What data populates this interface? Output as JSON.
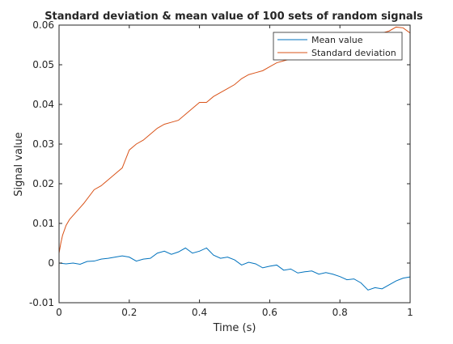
{
  "chart_data": {
    "type": "line",
    "title": "Standard deviation & mean value of 100 sets of random signals",
    "xlabel": "Time (s)",
    "ylabel": "Signal value",
    "xlim": [
      0,
      1
    ],
    "ylim": [
      -0.01,
      0.06
    ],
    "xticks": [
      0,
      0.2,
      0.4,
      0.6,
      0.8,
      1
    ],
    "xtick_labels": [
      "0",
      "0.2",
      "0.4",
      "0.6",
      "0.8",
      "1"
    ],
    "yticks": [
      -0.01,
      0,
      0.01,
      0.02,
      0.03,
      0.04,
      0.05,
      0.06
    ],
    "ytick_labels": [
      "-0.01",
      "0",
      "0.01",
      "0.02",
      "0.03",
      "0.04",
      "0.05",
      "0.06"
    ],
    "grid": false,
    "legend_position": "top-right",
    "series": [
      {
        "name": "Mean value",
        "color": "#0072BD",
        "x": [
          0,
          0.02,
          0.04,
          0.06,
          0.08,
          0.1,
          0.12,
          0.14,
          0.16,
          0.18,
          0.2,
          0.22,
          0.24,
          0.26,
          0.28,
          0.3,
          0.32,
          0.34,
          0.36,
          0.38,
          0.4,
          0.42,
          0.44,
          0.46,
          0.48,
          0.5,
          0.52,
          0.54,
          0.56,
          0.58,
          0.6,
          0.62,
          0.64,
          0.66,
          0.68,
          0.7,
          0.72,
          0.74,
          0.76,
          0.78,
          0.8,
          0.82,
          0.84,
          0.86,
          0.88,
          0.9,
          0.92,
          0.94,
          0.96,
          0.98,
          1.0
        ],
        "y": [
          0.0,
          -0.0002,
          0.0,
          -0.0003,
          0.0004,
          0.0005,
          0.001,
          0.0012,
          0.0015,
          0.0018,
          0.0015,
          0.0005,
          0.001,
          0.0012,
          0.0025,
          0.003,
          0.0022,
          0.0028,
          0.0038,
          0.0025,
          0.003,
          0.0038,
          0.002,
          0.0012,
          0.0015,
          0.0008,
          -0.0005,
          0.0002,
          -0.0002,
          -0.0012,
          -0.0008,
          -0.0005,
          -0.0018,
          -0.0015,
          -0.0025,
          -0.0022,
          -0.002,
          -0.0028,
          -0.0024,
          -0.0028,
          -0.0034,
          -0.0042,
          -0.004,
          -0.005,
          -0.0068,
          -0.0062,
          -0.0065,
          -0.0055,
          -0.0045,
          -0.0038,
          -0.0035
        ]
      },
      {
        "name": "Standard deviation",
        "color": "#D95319",
        "x": [
          0,
          0.005,
          0.01,
          0.02,
          0.03,
          0.05,
          0.07,
          0.1,
          0.12,
          0.14,
          0.16,
          0.18,
          0.2,
          0.22,
          0.24,
          0.26,
          0.28,
          0.3,
          0.32,
          0.34,
          0.36,
          0.38,
          0.4,
          0.42,
          0.44,
          0.46,
          0.48,
          0.5,
          0.52,
          0.54,
          0.56,
          0.58,
          0.6,
          0.62,
          0.64,
          0.66,
          0.68,
          0.7,
          0.72,
          0.74,
          0.76,
          0.78,
          0.8,
          0.82,
          0.84,
          0.86,
          0.88,
          0.9,
          0.92,
          0.94,
          0.96,
          0.98,
          1.0
        ],
        "y": [
          0.0025,
          0.005,
          0.007,
          0.0095,
          0.011,
          0.013,
          0.015,
          0.0185,
          0.0195,
          0.021,
          0.0225,
          0.024,
          0.0285,
          0.03,
          0.031,
          0.0325,
          0.034,
          0.035,
          0.0355,
          0.036,
          0.0375,
          0.039,
          0.0405,
          0.0405,
          0.042,
          0.043,
          0.044,
          0.045,
          0.0465,
          0.0475,
          0.048,
          0.0485,
          0.0495,
          0.0505,
          0.051,
          0.0515,
          0.052,
          0.053,
          0.054,
          0.0545,
          0.055,
          0.0552,
          0.0558,
          0.056,
          0.0565,
          0.057,
          0.0572,
          0.0578,
          0.058,
          0.0585,
          0.0595,
          0.0593,
          0.058
        ]
      }
    ]
  }
}
